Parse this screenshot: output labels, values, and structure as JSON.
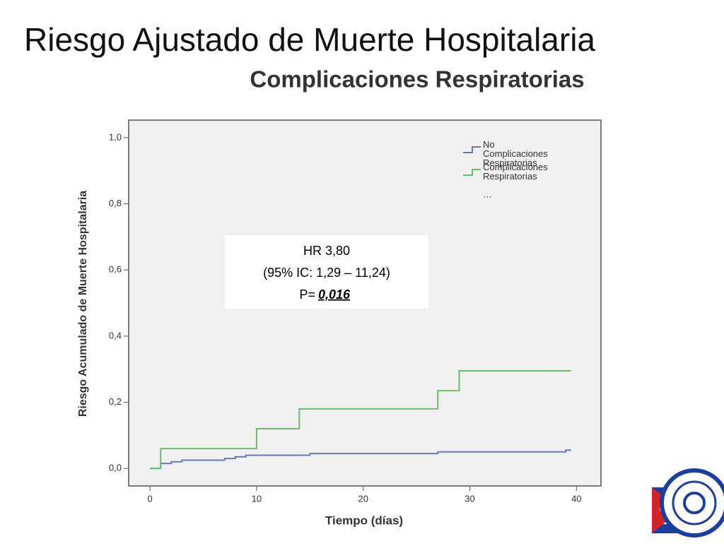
{
  "title": "Riesgo Ajustado de Muerte Hospitalaria",
  "chart_data": {
    "type": "step",
    "title": "Complicaciones Respiratorias",
    "xlabel": "Tiempo (días)",
    "ylabel": "Riesgo Acumulado de Muerte Hospitalaria",
    "xlim": [
      -2,
      42.3
    ],
    "ylim": [
      -0.053,
      1.053
    ],
    "xticks": [
      0,
      10,
      20,
      30,
      40
    ],
    "yticks": [
      {
        "value": 0,
        "label": "0,0"
      },
      {
        "value": 0.2,
        "label": "0,2"
      },
      {
        "value": 0.4,
        "label": "0,4"
      },
      {
        "value": 0.6,
        "label": "0,6"
      },
      {
        "value": 0.8,
        "label": "0,8"
      },
      {
        "value": 1,
        "label": "1,0"
      }
    ],
    "legend": "top-right",
    "legend_extra": "…",
    "series": [
      {
        "name": "No Complicaciones Respiratorias",
        "color": "#6a78b8",
        "x": [
          0,
          1,
          2,
          3,
          7,
          8,
          9,
          15,
          27,
          39,
          39.5
        ],
        "values": [
          0,
          0.015,
          0.02,
          0.025,
          0.03,
          0.035,
          0.04,
          0.045,
          0.05,
          0.055,
          0.055
        ]
      },
      {
        "name": "Complicaciones Respiratorias",
        "color": "#6dbb6d",
        "x": [
          0,
          1,
          10,
          14,
          27,
          29,
          39.5
        ],
        "values": [
          0,
          0.06,
          0.12,
          0.18,
          0.235,
          0.295,
          0.295
        ]
      }
    ],
    "annotation": {
      "lines": [
        "HR 3,80",
        "(95% IC: 1,29 – 11,24)"
      ],
      "p_label": "P=",
      "p_value": "0,016"
    }
  }
}
